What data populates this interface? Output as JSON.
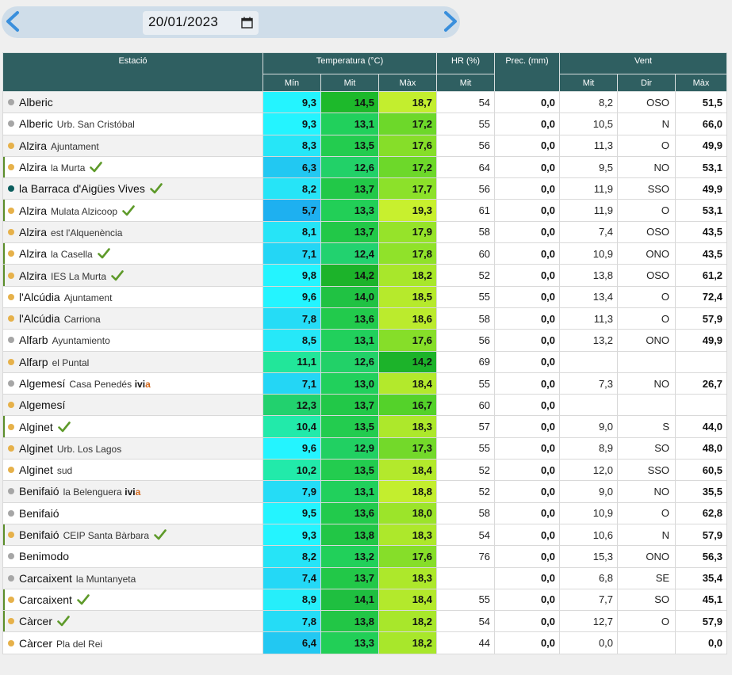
{
  "date_nav": {
    "prev_icon": "chevron-left-icon",
    "next_icon": "chevron-right-icon",
    "date_value": "20/01/2023",
    "calendar_icon": "calendar-icon"
  },
  "table": {
    "headers": {
      "station": "Estació",
      "temperature": "Temperatura (°C)",
      "humidity": "HR (%)",
      "precip": "Prec. (mm)",
      "wind": "Vent",
      "t_min": "Mín",
      "t_mit": "Mit",
      "t_max": "Màx",
      "hr_mit": "Mit",
      "w_mit": "Mit",
      "w_dir": "Dir",
      "w_max": "Màx"
    },
    "colors": {
      "dot_grey": "#a6a6a6",
      "dot_orange": "#e6b14a",
      "dot_teal": "#0b5d5d",
      "check_green": "#5e9a2a",
      "ivia_orange": "#d2691e"
    },
    "rows": [
      {
        "name": "Alberic",
        "sub": "",
        "dot": "#a6a6a6",
        "check": false,
        "mark": false,
        "ivia": false,
        "min": "9,3",
        "minc": "#24f4ff",
        "mit": "14,5",
        "mitc": "#1db92b",
        "max": "18,7",
        "maxc": "#c3ee2e",
        "hr": "54",
        "prec": "0,0",
        "wmit": "8,2",
        "wdir": "OSO",
        "wmax": "51,5"
      },
      {
        "name": "Alberic",
        "sub": "Urb. San Cristóbal",
        "dot": "#a6a6a6",
        "check": false,
        "mark": false,
        "ivia": false,
        "min": "9,3",
        "minc": "#24f4ff",
        "mit": "13,1",
        "mitc": "#21d05c",
        "max": "17,2",
        "maxc": "#6dd82a",
        "hr": "55",
        "prec": "0,0",
        "wmit": "10,5",
        "wdir": "N",
        "wmax": "66,0"
      },
      {
        "name": "Alzira",
        "sub": "Ajuntament",
        "dot": "#e6b14a",
        "check": false,
        "mark": false,
        "ivia": false,
        "min": "8,3",
        "minc": "#26e6f7",
        "mit": "13,5",
        "mitc": "#23cc4f",
        "max": "17,6",
        "maxc": "#86de29",
        "hr": "56",
        "prec": "0,0",
        "wmit": "11,3",
        "wdir": "O",
        "wmax": "49,9"
      },
      {
        "name": "Alzira",
        "sub": "la Murta",
        "dot": "#e6b14a",
        "check": true,
        "mark": true,
        "ivia": false,
        "min": "6,3",
        "minc": "#22c8f2",
        "mit": "12,6",
        "mitc": "#22d168",
        "max": "17,2",
        "maxc": "#6dd82a",
        "hr": "64",
        "prec": "0,0",
        "wmit": "9,5",
        "wdir": "NO",
        "wmax": "53,1"
      },
      {
        "name": "la Barraca d'Aigües Vives",
        "sub": "",
        "dot": "#0b5d5d",
        "check": true,
        "mark": false,
        "ivia": false,
        "min": "8,2",
        "minc": "#26e4f7",
        "mit": "13,7",
        "mitc": "#22c848",
        "max": "17,7",
        "maxc": "#8ce12a",
        "hr": "56",
        "prec": "0,0",
        "wmit": "11,9",
        "wdir": "SSO",
        "wmax": "49,9"
      },
      {
        "name": "Alzira",
        "sub": "Mulata Alzicoop",
        "dot": "#e6b14a",
        "check": true,
        "mark": true,
        "ivia": false,
        "min": "5,7",
        "minc": "#1eb0f0",
        "mit": "13,3",
        "mitc": "#22cf57",
        "max": "19,3",
        "maxc": "#c8f02e",
        "hr": "61",
        "prec": "0,0",
        "wmit": "11,9",
        "wdir": "O",
        "wmax": "53,1"
      },
      {
        "name": "Alzira",
        "sub": "est l'Alquenència",
        "dot": "#e6b14a",
        "check": false,
        "mark": false,
        "ivia": false,
        "min": "8,1",
        "minc": "#26e4f7",
        "mit": "13,7",
        "mitc": "#22c848",
        "max": "17,9",
        "maxc": "#96e32a",
        "hr": "58",
        "prec": "0,0",
        "wmit": "7,4",
        "wdir": "OSO",
        "wmax": "43,5"
      },
      {
        "name": "Alzira",
        "sub": "la Casella",
        "dot": "#e6b14a",
        "check": true,
        "mark": true,
        "ivia": false,
        "min": "7,1",
        "minc": "#24d6f5",
        "mit": "12,4",
        "mitc": "#22d26f",
        "max": "17,8",
        "maxc": "#90e22a",
        "hr": "60",
        "prec": "0,0",
        "wmit": "10,9",
        "wdir": "ONO",
        "wmax": "43,5"
      },
      {
        "name": "Alzira",
        "sub": "IES La Murta",
        "dot": "#e6b14a",
        "check": true,
        "mark": true,
        "ivia": false,
        "min": "9,8",
        "minc": "#24f4ff",
        "mit": "14,2",
        "mitc": "#1cb32a",
        "max": "18,2",
        "maxc": "#a8e72b",
        "hr": "52",
        "prec": "0,0",
        "wmit": "13,8",
        "wdir": "OSO",
        "wmax": "61,2"
      },
      {
        "name": "l'Alcúdia",
        "sub": "Ajuntament",
        "dot": "#e6b14a",
        "check": false,
        "mark": false,
        "ivia": false,
        "min": "9,6",
        "minc": "#24f4ff",
        "mit": "14,0",
        "mitc": "#20c243",
        "max": "18,5",
        "maxc": "#b6ea2c",
        "hr": "55",
        "prec": "0,0",
        "wmit": "13,4",
        "wdir": "O",
        "wmax": "72,4"
      },
      {
        "name": "l'Alcúdia",
        "sub": "Carriona",
        "dot": "#e6b14a",
        "check": false,
        "mark": false,
        "ivia": false,
        "min": "7,8",
        "minc": "#25dcf6",
        "mit": "13,6",
        "mitc": "#22ca4c",
        "max": "18,6",
        "maxc": "#bbeb2d",
        "hr": "58",
        "prec": "0,0",
        "wmit": "11,3",
        "wdir": "O",
        "wmax": "57,9"
      },
      {
        "name": "Alfarb",
        "sub": "Ayuntamiento",
        "dot": "#a6a6a6",
        "check": false,
        "mark": false,
        "ivia": false,
        "min": "8,5",
        "minc": "#26e8f8",
        "mit": "13,1",
        "mitc": "#21d05c",
        "max": "17,6",
        "maxc": "#86de29",
        "hr": "56",
        "prec": "0,0",
        "wmit": "13,2",
        "wdir": "ONO",
        "wmax": "49,9"
      },
      {
        "name": "Alfarp",
        "sub": "el Puntal",
        "dot": "#e6b14a",
        "check": false,
        "mark": false,
        "ivia": false,
        "min": "11,1",
        "minc": "#22e69a",
        "mit": "12,6",
        "mitc": "#22d168",
        "max": "14,2",
        "maxc": "#1cb32a",
        "hr": "69",
        "prec": "0,0",
        "wmit": "",
        "wdir": "",
        "wmax": ""
      },
      {
        "name": "Algemesí",
        "sub": "Casa Penedés",
        "dot": "#a6a6a6",
        "check": false,
        "mark": false,
        "ivia": true,
        "min": "7,1",
        "minc": "#24d6f5",
        "mit": "13,0",
        "mitc": "#21d05c",
        "max": "18,4",
        "maxc": "#b3e92c",
        "hr": "55",
        "prec": "0,0",
        "wmit": "7,3",
        "wdir": "NO",
        "wmax": "26,7"
      },
      {
        "name": "Algemesí",
        "sub": "",
        "dot": "#e6b14a",
        "check": false,
        "mark": false,
        "ivia": false,
        "min": "12,3",
        "minc": "#22d16e",
        "mit": "13,7",
        "mitc": "#22c848",
        "max": "16,7",
        "maxc": "#54d22a",
        "hr": "60",
        "prec": "0,0",
        "wmit": "",
        "wdir": "",
        "wmax": ""
      },
      {
        "name": "Alginet",
        "sub": "",
        "dot": "#e6b14a",
        "check": true,
        "mark": true,
        "ivia": false,
        "min": "10,4",
        "minc": "#22eaaa",
        "mit": "13,5",
        "mitc": "#23cc4f",
        "max": "18,3",
        "maxc": "#ade82b",
        "hr": "57",
        "prec": "0,0",
        "wmit": "9,0",
        "wdir": "S",
        "wmax": "44,0"
      },
      {
        "name": "Alginet",
        "sub": "Urb. Los Lagos",
        "dot": "#e6b14a",
        "check": false,
        "mark": false,
        "ivia": false,
        "min": "9,6",
        "minc": "#24f4ff",
        "mit": "12,9",
        "mitc": "#21d062",
        "max": "17,3",
        "maxc": "#73d92a",
        "hr": "55",
        "prec": "0,0",
        "wmit": "8,9",
        "wdir": "SO",
        "wmax": "48,0"
      },
      {
        "name": "Alginet",
        "sub": "sud",
        "dot": "#e6b14a",
        "check": false,
        "mark": false,
        "ivia": false,
        "min": "10,2",
        "minc": "#22eaaa",
        "mit": "13,5",
        "mitc": "#23cc4f",
        "max": "18,4",
        "maxc": "#b3e92c",
        "hr": "52",
        "prec": "0,0",
        "wmit": "12,0",
        "wdir": "SSO",
        "wmax": "60,5"
      },
      {
        "name": "Benifaió",
        "sub": "la Belenguera",
        "dot": "#a6a6a6",
        "check": false,
        "mark": false,
        "ivia": true,
        "min": "7,9",
        "minc": "#25dcf6",
        "mit": "13,1",
        "mitc": "#21d05c",
        "max": "18,8",
        "maxc": "#c3ee2e",
        "hr": "52",
        "prec": "0,0",
        "wmit": "9,0",
        "wdir": "NO",
        "wmax": "35,5"
      },
      {
        "name": "Benifaió",
        "sub": "",
        "dot": "#a6a6a6",
        "check": false,
        "mark": false,
        "ivia": false,
        "min": "9,5",
        "minc": "#24f4ff",
        "mit": "13,6",
        "mitc": "#22ca4c",
        "max": "18,0",
        "maxc": "#9ce42a",
        "hr": "58",
        "prec": "0,0",
        "wmit": "10,9",
        "wdir": "O",
        "wmax": "62,8"
      },
      {
        "name": "Benifaió",
        "sub": "CEIP Santa Bàrbara",
        "dot": "#e6b14a",
        "check": true,
        "mark": true,
        "ivia": false,
        "min": "9,3",
        "minc": "#24f4ff",
        "mit": "13,8",
        "mitc": "#22c646",
        "max": "18,3",
        "maxc": "#ade82b",
        "hr": "54",
        "prec": "0,0",
        "wmit": "10,6",
        "wdir": "N",
        "wmax": "57,9"
      },
      {
        "name": "Benimodo",
        "sub": "",
        "dot": "#a6a6a6",
        "check": false,
        "mark": false,
        "ivia": false,
        "min": "8,2",
        "minc": "#26e4f7",
        "mit": "13,2",
        "mitc": "#21d05a",
        "max": "17,6",
        "maxc": "#86de29",
        "hr": "76",
        "prec": "0,0",
        "wmit": "15,3",
        "wdir": "ONO",
        "wmax": "56,3"
      },
      {
        "name": "Carcaixent",
        "sub": "la Muntanyeta",
        "dot": "#a6a6a6",
        "check": false,
        "mark": false,
        "ivia": false,
        "min": "7,4",
        "minc": "#24d8f6",
        "mit": "13,7",
        "mitc": "#22c848",
        "max": "18,3",
        "maxc": "#ade82b",
        "hr": "",
        "prec": "0,0",
        "wmit": "6,8",
        "wdir": "SE",
        "wmax": "35,4"
      },
      {
        "name": "Carcaixent",
        "sub": "",
        "dot": "#e6b14a",
        "check": true,
        "mark": true,
        "ivia": false,
        "min": "8,9",
        "minc": "#26eefa",
        "mit": "14,1",
        "mitc": "#1fbf40",
        "max": "18,4",
        "maxc": "#b3e92c",
        "hr": "55",
        "prec": "0,0",
        "wmit": "7,7",
        "wdir": "SO",
        "wmax": "45,1"
      },
      {
        "name": "Càrcer",
        "sub": "",
        "dot": "#e6b14a",
        "check": true,
        "mark": true,
        "ivia": false,
        "min": "7,8",
        "minc": "#25dcf6",
        "mit": "13,8",
        "mitc": "#22c646",
        "max": "18,2",
        "maxc": "#a8e72b",
        "hr": "54",
        "prec": "0,0",
        "wmit": "12,7",
        "wdir": "O",
        "wmax": "57,9"
      },
      {
        "name": "Càrcer",
        "sub": "Pla del Rei",
        "dot": "#e6b14a",
        "check": false,
        "mark": false,
        "ivia": false,
        "min": "6,4",
        "minc": "#22c8f2",
        "mit": "13,3",
        "mitc": "#22cf57",
        "max": "18,2",
        "maxc": "#a8e72b",
        "hr": "44",
        "prec": "0,0",
        "wmit": "0,0",
        "wdir": "",
        "wmax": "0,0"
      }
    ]
  }
}
